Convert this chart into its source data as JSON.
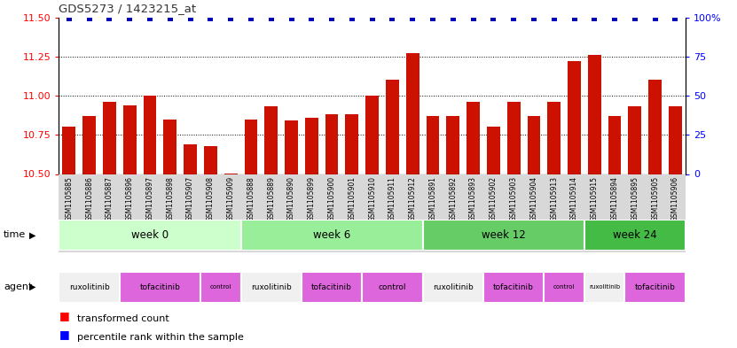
{
  "title": "GDS5273 / 1423215_at",
  "samples": [
    "GSM1105885",
    "GSM1105886",
    "GSM1105887",
    "GSM1105896",
    "GSM1105897",
    "GSM1105898",
    "GSM1105907",
    "GSM1105908",
    "GSM1105909",
    "GSM1105888",
    "GSM1105889",
    "GSM1105890",
    "GSM1105899",
    "GSM1105900",
    "GSM1105901",
    "GSM1105910",
    "GSM1105911",
    "GSM1105912",
    "GSM1105891",
    "GSM1105892",
    "GSM1105893",
    "GSM1105902",
    "GSM1105903",
    "GSM1105904",
    "GSM1105913",
    "GSM1105914",
    "GSM1105915",
    "GSM1105894",
    "GSM1105895",
    "GSM1105905",
    "GSM1105906"
  ],
  "bar_values": [
    10.8,
    10.87,
    10.96,
    10.94,
    11.0,
    10.85,
    10.69,
    10.68,
    10.505,
    10.85,
    10.93,
    10.84,
    10.86,
    10.88,
    10.88,
    11.0,
    11.1,
    11.27,
    10.87,
    10.87,
    10.96,
    10.8,
    10.96,
    10.87,
    10.96,
    11.22,
    11.26,
    10.87,
    10.93,
    11.1,
    10.93
  ],
  "percentile_values": [
    99,
    99,
    99,
    99,
    99,
    99,
    99,
    99,
    99,
    99,
    99,
    99,
    99,
    99,
    99,
    99,
    99,
    99,
    99,
    99,
    99,
    99,
    99,
    99,
    99,
    99,
    99,
    99,
    99,
    99,
    99
  ],
  "bar_color": "#cc1100",
  "dot_color": "#0000bb",
  "ylim_left": [
    10.5,
    11.5
  ],
  "ylim_right": [
    0,
    100
  ],
  "yticks_left": [
    10.5,
    10.75,
    11.0,
    11.25,
    11.5
  ],
  "yticks_right": [
    0,
    25,
    50,
    75,
    100
  ],
  "grid_lines": [
    10.75,
    11.0,
    11.25
  ],
  "time_groups": [
    {
      "label": "week 0",
      "start": 0,
      "end": 9,
      "color": "#ccffcc"
    },
    {
      "label": "week 6",
      "start": 9,
      "end": 18,
      "color": "#99ee99"
    },
    {
      "label": "week 12",
      "start": 18,
      "end": 26,
      "color": "#66cc66"
    },
    {
      "label": "week 24",
      "start": 26,
      "end": 31,
      "color": "#44bb44"
    }
  ],
  "agent_colors": {
    "ruxolitinib": "#f0f0f0",
    "tofacitinib": "#dd66dd",
    "control": "#dd66dd"
  },
  "agent_groups": [
    {
      "label": "ruxolitinib",
      "start": 0,
      "end": 3
    },
    {
      "label": "tofacitinib",
      "start": 3,
      "end": 7
    },
    {
      "label": "control",
      "start": 7,
      "end": 9
    },
    {
      "label": "ruxolitinib",
      "start": 9,
      "end": 12
    },
    {
      "label": "tofacitinib",
      "start": 12,
      "end": 15
    },
    {
      "label": "control",
      "start": 15,
      "end": 18
    },
    {
      "label": "ruxolitinib",
      "start": 18,
      "end": 21
    },
    {
      "label": "tofacitinib",
      "start": 21,
      "end": 24
    },
    {
      "label": "control",
      "start": 24,
      "end": 26
    },
    {
      "label": "ruxolitinib",
      "start": 26,
      "end": 28
    },
    {
      "label": "tofacitinib",
      "start": 28,
      "end": 31
    }
  ],
  "bg_color": "#ffffff",
  "label_bg_color": "#d8d8d8",
  "figsize": [
    8.31,
    3.93
  ],
  "dpi": 100
}
